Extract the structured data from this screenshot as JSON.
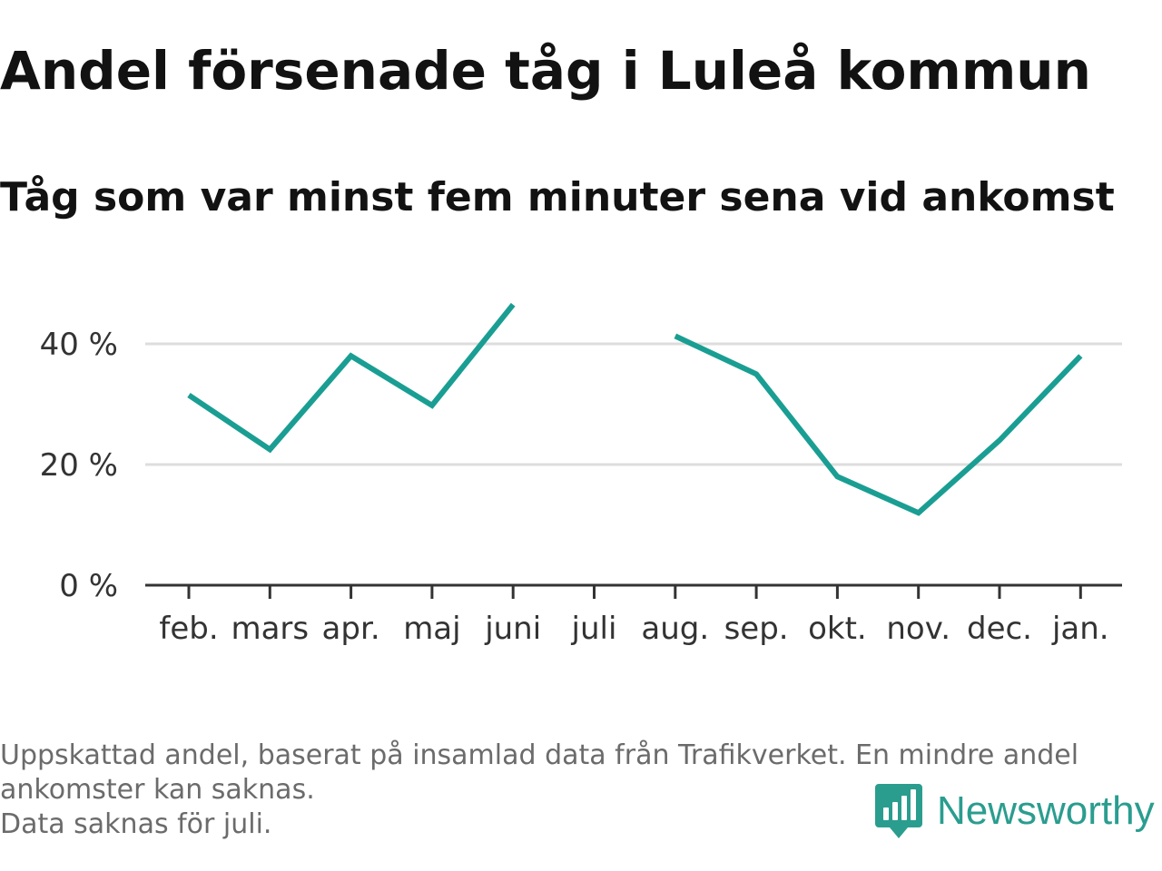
{
  "title": "Andel försenade tåg i Luleå kommun",
  "subtitle": "Tåg som var minst fem minuter sena vid ankomst",
  "footnote": {
    "line1": "Uppskattad andel, baserat på insamlad data från Trafikverket. En mindre andel",
    "line2": "ankomster kan saknas.",
    "line3": "Data saknas för juli."
  },
  "brand": {
    "name": "Newsworthy",
    "icon": "newsworthy-logo-icon",
    "color": "#2a9d8f"
  },
  "chart_data": {
    "type": "line",
    "categories": [
      "feb.",
      "mars",
      "apr.",
      "maj",
      "juni",
      "juli",
      "aug.",
      "sep.",
      "okt.",
      "nov.",
      "dec.",
      "jan."
    ],
    "series": [
      {
        "values": [
          31.5,
          22.5,
          38,
          29.8,
          46.5,
          null,
          41.3,
          35,
          18,
          12,
          24,
          38
        ],
        "color": "#1a9e93"
      }
    ],
    "y_ticks": [
      {
        "value": 0,
        "label": "0 %"
      },
      {
        "value": 20,
        "label": "20 %"
      },
      {
        "value": 40,
        "label": "40 %"
      }
    ],
    "ylim": [
      0,
      50
    ],
    "grid": true,
    "grid_color": "#dddddd",
    "axis_color": "#333333"
  }
}
